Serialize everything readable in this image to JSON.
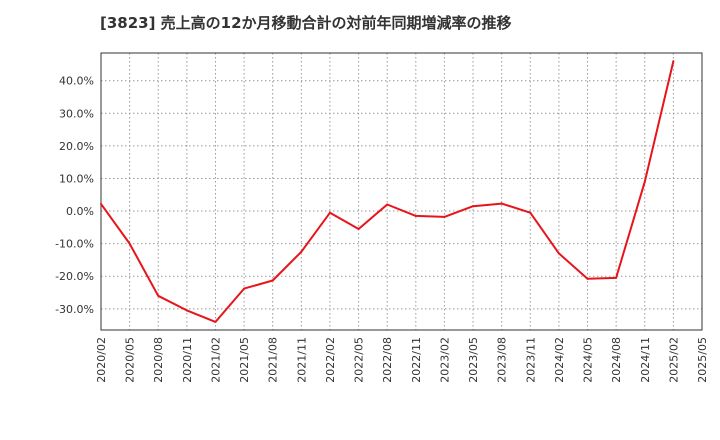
{
  "chart_data": {
    "type": "line",
    "title": "[3823]  売上高の12か月移動合計の対前年同期増減率の推移",
    "xlabel": "",
    "ylabel": "",
    "ylim": [
      -36.5,
      48.5
    ],
    "yticks": [
      -30,
      -20,
      -10,
      0,
      10,
      20,
      30,
      40
    ],
    "ytick_labels": [
      "-30.0%",
      "-20.0%",
      "-10.0%",
      "0.0%",
      "10.0%",
      "20.0%",
      "30.0%",
      "40.0%"
    ],
    "categories": [
      "2020/02",
      "2020/05",
      "2020/08",
      "2020/11",
      "2021/02",
      "2021/05",
      "2021/08",
      "2021/11",
      "2022/02",
      "2022/05",
      "2022/08",
      "2022/11",
      "2023/02",
      "2023/05",
      "2023/08",
      "2023/11",
      "2024/02",
      "2024/05",
      "2024/08",
      "2024/11",
      "2025/02",
      "2025/05"
    ],
    "series": [
      {
        "name": "増減率",
        "color": "#e8141c",
        "values": [
          2.2,
          -10.0,
          -26.0,
          -30.5,
          -34.0,
          -23.8,
          -21.3,
          -12.5,
          -0.5,
          -5.5,
          2.0,
          -1.5,
          -1.8,
          1.5,
          2.3,
          -0.5,
          -13.0,
          -20.8,
          -20.5,
          9.0,
          46.0,
          null
        ]
      }
    ],
    "grid": true
  }
}
